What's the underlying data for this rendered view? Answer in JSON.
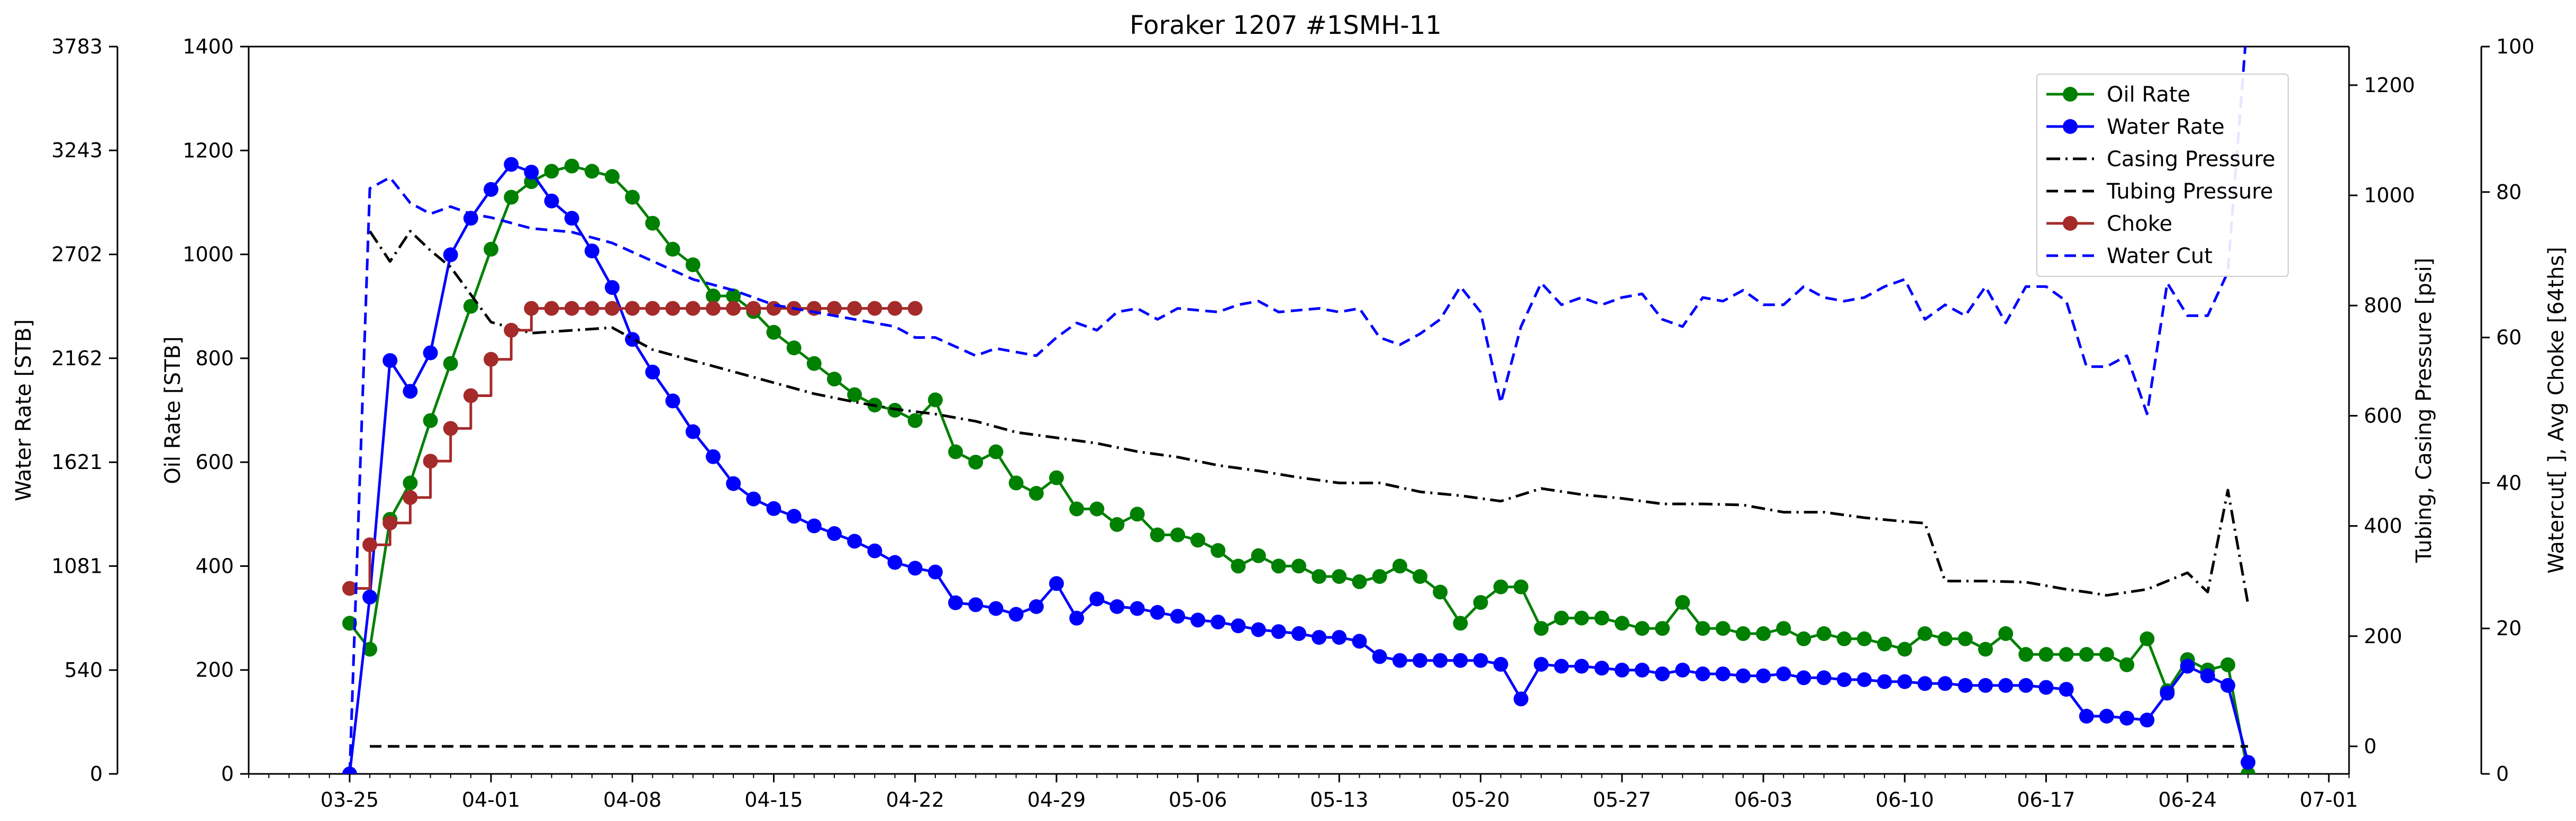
{
  "chart_data": {
    "type": "line",
    "title": "Foraker 1207 #1SMH-11",
    "x_axis": {
      "range": [
        "2019-03-20",
        "2019-07-02"
      ],
      "ticks": [
        "03-25",
        "04-01",
        "04-08",
        "04-15",
        "04-22",
        "04-29",
        "05-06",
        "05-13",
        "05-20",
        "05-27",
        "06-03",
        "06-10",
        "06-17",
        "06-24",
        "07-01"
      ],
      "tick_dates": [
        "2019-03-25",
        "2019-04-01",
        "2019-04-08",
        "2019-04-15",
        "2019-04-22",
        "2019-04-29",
        "2019-05-06",
        "2019-05-13",
        "2019-05-20",
        "2019-05-27",
        "2019-06-03",
        "2019-06-10",
        "2019-06-17",
        "2019-06-24",
        "2019-07-01"
      ]
    },
    "axes": {
      "oil": {
        "label": "Oil Rate [STB]",
        "range": [
          0,
          1400
        ],
        "ticks": [
          "0",
          "200",
          "400",
          "600",
          "800",
          "1000",
          "1200",
          "1400"
        ]
      },
      "water": {
        "label": "Water Rate [STB]",
        "range": [
          0,
          3783
        ],
        "ticks": [
          "0",
          "540",
          "1081",
          "1621",
          "2162",
          "2702",
          "3243",
          "3783"
        ]
      },
      "pressure": {
        "label": "Tubing, Casing Pressure [psi]",
        "range": [
          -50,
          1270
        ],
        "ticks": [
          "0",
          "200",
          "400",
          "600",
          "800",
          "1000",
          "1200"
        ]
      },
      "watercut": {
        "label": "Watercut[ ], Avg Choke [64ths]",
        "range": [
          0,
          100
        ],
        "ticks": [
          "0",
          "20",
          "40",
          "60",
          "80",
          "100"
        ]
      }
    },
    "legend": {
      "placement": "top-right",
      "entries": [
        "Oil Rate",
        "Water Rate",
        "Casing Pressure",
        "Tubing Pressure",
        "Choke",
        "Water Cut"
      ]
    },
    "grid": false,
    "series": [
      {
        "name": "Oil Rate",
        "axis": "oil",
        "color": "#008000",
        "style": "solid",
        "marker": "circle",
        "x": [
          "2019-03-25",
          "2019-03-26",
          "2019-03-27",
          "2019-03-28",
          "2019-03-29",
          "2019-03-30",
          "2019-03-31",
          "2019-04-01",
          "2019-04-02",
          "2019-04-03",
          "2019-04-04",
          "2019-04-05",
          "2019-04-06",
          "2019-04-07",
          "2019-04-08",
          "2019-04-09",
          "2019-04-10",
          "2019-04-11",
          "2019-04-12",
          "2019-04-13",
          "2019-04-14",
          "2019-04-15",
          "2019-04-16",
          "2019-04-17",
          "2019-04-18",
          "2019-04-19",
          "2019-04-20",
          "2019-04-21",
          "2019-04-22",
          "2019-04-23",
          "2019-04-24",
          "2019-04-25",
          "2019-04-26",
          "2019-04-27",
          "2019-04-28",
          "2019-04-29",
          "2019-04-30",
          "2019-05-01",
          "2019-05-02",
          "2019-05-03",
          "2019-05-04",
          "2019-05-05",
          "2019-05-06",
          "2019-05-07",
          "2019-05-08",
          "2019-05-09",
          "2019-05-10",
          "2019-05-11",
          "2019-05-12",
          "2019-05-13",
          "2019-05-14",
          "2019-05-15",
          "2019-05-16",
          "2019-05-17",
          "2019-05-18",
          "2019-05-19",
          "2019-05-20",
          "2019-05-21",
          "2019-05-22",
          "2019-05-23",
          "2019-05-24",
          "2019-05-25",
          "2019-05-26",
          "2019-05-27",
          "2019-05-28",
          "2019-05-29",
          "2019-05-30",
          "2019-05-31",
          "2019-06-01",
          "2019-06-02",
          "2019-06-03",
          "2019-06-04",
          "2019-06-05",
          "2019-06-06",
          "2019-06-07",
          "2019-06-08",
          "2019-06-09",
          "2019-06-10",
          "2019-06-11",
          "2019-06-12",
          "2019-06-13",
          "2019-06-14",
          "2019-06-15",
          "2019-06-16",
          "2019-06-17",
          "2019-06-18",
          "2019-06-19",
          "2019-06-20",
          "2019-06-21",
          "2019-06-22",
          "2019-06-23",
          "2019-06-24",
          "2019-06-25",
          "2019-06-26",
          "2019-06-27"
        ],
        "values": [
          290,
          240,
          490,
          560,
          680,
          790,
          900,
          1010,
          1110,
          1140,
          1160,
          1170,
          1160,
          1150,
          1110,
          1060,
          1010,
          980,
          920,
          920,
          890,
          850,
          820,
          790,
          760,
          730,
          710,
          700,
          680,
          720,
          620,
          600,
          620,
          560,
          540,
          570,
          510,
          510,
          480,
          500,
          460,
          460,
          450,
          430,
          400,
          420,
          400,
          400,
          380,
          380,
          370,
          380,
          400,
          380,
          350,
          290,
          330,
          360,
          360,
          280,
          300,
          300,
          300,
          290,
          280,
          280,
          330,
          280,
          280,
          270,
          270,
          280,
          260,
          270,
          260,
          260,
          250,
          240,
          270,
          260,
          260,
          240,
          270,
          230,
          230,
          230,
          230,
          230,
          210,
          260,
          160,
          220,
          200,
          210,
          0
        ]
      },
      {
        "name": "Water Rate",
        "axis": "water",
        "color": "#0000ff",
        "style": "solid",
        "marker": "circle",
        "x": [
          "2019-03-25",
          "2019-03-26",
          "2019-03-27",
          "2019-03-28",
          "2019-03-29",
          "2019-03-30",
          "2019-03-31",
          "2019-04-01",
          "2019-04-02",
          "2019-04-03",
          "2019-04-04",
          "2019-04-05",
          "2019-04-06",
          "2019-04-07",
          "2019-04-08",
          "2019-04-09",
          "2019-04-10",
          "2019-04-11",
          "2019-04-12",
          "2019-04-13",
          "2019-04-14",
          "2019-04-15",
          "2019-04-16",
          "2019-04-17",
          "2019-04-18",
          "2019-04-19",
          "2019-04-20",
          "2019-04-21",
          "2019-04-22",
          "2019-04-23",
          "2019-04-24",
          "2019-04-25",
          "2019-04-26",
          "2019-04-27",
          "2019-04-28",
          "2019-04-29",
          "2019-04-30",
          "2019-05-01",
          "2019-05-02",
          "2019-05-03",
          "2019-05-04",
          "2019-05-05",
          "2019-05-06",
          "2019-05-07",
          "2019-05-08",
          "2019-05-09",
          "2019-05-10",
          "2019-05-11",
          "2019-05-12",
          "2019-05-13",
          "2019-05-14",
          "2019-05-15",
          "2019-05-16",
          "2019-05-17",
          "2019-05-18",
          "2019-05-19",
          "2019-05-20",
          "2019-05-21",
          "2019-05-22",
          "2019-05-23",
          "2019-05-24",
          "2019-05-25",
          "2019-05-26",
          "2019-05-27",
          "2019-05-28",
          "2019-05-29",
          "2019-05-30",
          "2019-05-31",
          "2019-06-01",
          "2019-06-02",
          "2019-06-03",
          "2019-06-04",
          "2019-06-05",
          "2019-06-06",
          "2019-06-07",
          "2019-06-08",
          "2019-06-09",
          "2019-06-10",
          "2019-06-11",
          "2019-06-12",
          "2019-06-13",
          "2019-06-14",
          "2019-06-15",
          "2019-06-16",
          "2019-06-17",
          "2019-06-18",
          "2019-06-19",
          "2019-06-20",
          "2019-06-21",
          "2019-06-22",
          "2019-06-23",
          "2019-06-24",
          "2019-06-25",
          "2019-06-26",
          "2019-06-27"
        ],
        "values": [
          0,
          920,
          2150,
          1990,
          2190,
          2700,
          2890,
          3040,
          3170,
          3130,
          2980,
          2890,
          2720,
          2530,
          2260,
          2090,
          1940,
          1780,
          1650,
          1510,
          1430,
          1380,
          1340,
          1290,
          1250,
          1210,
          1160,
          1100,
          1070,
          1050,
          890,
          880,
          860,
          830,
          870,
          990,
          810,
          910,
          870,
          860,
          840,
          820,
          800,
          790,
          770,
          750,
          740,
          730,
          710,
          710,
          690,
          610,
          590,
          590,
          590,
          590,
          590,
          570,
          390,
          570,
          560,
          560,
          550,
          540,
          540,
          520,
          540,
          520,
          520,
          510,
          510,
          520,
          500,
          500,
          490,
          490,
          480,
          480,
          470,
          470,
          460,
          460,
          460,
          460,
          450,
          440,
          300,
          300,
          290,
          280,
          420,
          560,
          510,
          460,
          60
        ]
      },
      {
        "name": "Casing Pressure",
        "axis": "pressure",
        "color": "#000000",
        "style": "dash-dot",
        "marker": "none",
        "x": [
          "2019-03-26",
          "2019-03-27",
          "2019-03-28",
          "2019-03-29",
          "2019-03-30",
          "2019-04-01",
          "2019-04-03",
          "2019-04-05",
          "2019-04-07",
          "2019-04-09",
          "2019-04-11",
          "2019-04-13",
          "2019-04-15",
          "2019-04-17",
          "2019-04-19",
          "2019-04-21",
          "2019-04-23",
          "2019-04-25",
          "2019-04-27",
          "2019-04-29",
          "2019-05-01",
          "2019-05-03",
          "2019-05-05",
          "2019-05-07",
          "2019-05-09",
          "2019-05-11",
          "2019-05-13",
          "2019-05-15",
          "2019-05-17",
          "2019-05-19",
          "2019-05-21",
          "2019-05-23",
          "2019-05-25",
          "2019-05-27",
          "2019-05-29",
          "2019-05-31",
          "2019-06-02",
          "2019-06-04",
          "2019-06-06",
          "2019-06-08",
          "2019-06-10",
          "2019-06-11",
          "2019-06-12",
          "2019-06-14",
          "2019-06-16",
          "2019-06-18",
          "2019-06-19",
          "2019-06-20",
          "2019-06-22",
          "2019-06-24",
          "2019-06-25",
          "2019-06-26",
          "2019-06-27"
        ],
        "values": [
          935,
          880,
          935,
          900,
          870,
          770,
          750,
          755,
          760,
          720,
          700,
          680,
          660,
          640,
          625,
          612,
          603,
          590,
          570,
          560,
          550,
          535,
          525,
          510,
          500,
          488,
          478,
          478,
          462,
          455,
          445,
          468,
          457,
          450,
          440,
          440,
          438,
          425,
          425,
          415,
          408,
          405,
          300,
          300,
          298,
          285,
          280,
          274,
          285,
          315,
          280,
          465,
          258
        ]
      },
      {
        "name": "Tubing Pressure",
        "axis": "pressure",
        "color": "#000000",
        "style": "dashed",
        "marker": "none",
        "x": [
          "2019-03-26",
          "2019-06-27"
        ],
        "values": [
          0,
          0
        ]
      },
      {
        "name": "Choke",
        "axis": "watercut",
        "color": "#a52a2a",
        "style": "steps-post",
        "marker": "circle",
        "x": [
          "2019-03-25",
          "2019-03-26",
          "2019-03-27",
          "2019-03-28",
          "2019-03-29",
          "2019-03-30",
          "2019-03-31",
          "2019-04-01",
          "2019-04-02",
          "2019-04-03",
          "2019-04-04",
          "2019-04-05",
          "2019-04-06",
          "2019-04-07",
          "2019-04-08",
          "2019-04-09",
          "2019-04-10",
          "2019-04-11",
          "2019-04-12",
          "2019-04-13",
          "2019-04-14",
          "2019-04-15",
          "2019-04-16",
          "2019-04-17",
          "2019-04-18",
          "2019-04-19",
          "2019-04-20",
          "2019-04-21",
          "2019-04-22"
        ],
        "values": [
          25.5,
          31.5,
          34.5,
          38,
          43,
          47.5,
          52,
          57,
          61,
          64,
          64,
          64,
          64,
          64,
          64,
          64,
          64,
          64,
          64,
          64,
          64,
          64,
          64,
          64,
          64,
          64,
          64,
          64,
          64
        ]
      },
      {
        "name": "Water Cut",
        "axis": "watercut",
        "color": "#0000ff",
        "style": "dashed",
        "marker": "none",
        "x": [
          "2019-03-25",
          "2019-03-26",
          "2019-03-27",
          "2019-03-28",
          "2019-03-29",
          "2019-03-30",
          "2019-03-31",
          "2019-04-01",
          "2019-04-03",
          "2019-04-05",
          "2019-04-07",
          "2019-04-09",
          "2019-04-11",
          "2019-04-13",
          "2019-04-15",
          "2019-04-17",
          "2019-04-19",
          "2019-04-21",
          "2019-04-22",
          "2019-04-23",
          "2019-04-25",
          "2019-04-26",
          "2019-04-28",
          "2019-04-29",
          "2019-04-30",
          "2019-05-01",
          "2019-05-02",
          "2019-05-03",
          "2019-05-04",
          "2019-05-05",
          "2019-05-07",
          "2019-05-08",
          "2019-05-09",
          "2019-05-10",
          "2019-05-12",
          "2019-05-13",
          "2019-05-14",
          "2019-05-15",
          "2019-05-16",
          "2019-05-17",
          "2019-05-18",
          "2019-05-19",
          "2019-05-20",
          "2019-05-21",
          "2019-05-22",
          "2019-05-23",
          "2019-05-24",
          "2019-05-25",
          "2019-05-26",
          "2019-05-27",
          "2019-05-28",
          "2019-05-29",
          "2019-05-30",
          "2019-05-31",
          "2019-06-01",
          "2019-06-02",
          "2019-06-03",
          "2019-06-04",
          "2019-06-05",
          "2019-06-06",
          "2019-06-07",
          "2019-06-08",
          "2019-06-09",
          "2019-06-10",
          "2019-06-11",
          "2019-06-12",
          "2019-06-13",
          "2019-06-14",
          "2019-06-15",
          "2019-06-16",
          "2019-06-17",
          "2019-06-18",
          "2019-06-19",
          "2019-06-20",
          "2019-06-21",
          "2019-06-22",
          "2019-06-23",
          "2019-06-24",
          "2019-06-25",
          "2019-06-26",
          "2019-06-27"
        ],
        "values": [
          0,
          80.5,
          82,
          78.5,
          77,
          78,
          77,
          76.5,
          75,
          74.5,
          73,
          70.5,
          68,
          66.5,
          64.5,
          63.5,
          62.5,
          61.5,
          60,
          60,
          57.5,
          58.5,
          57.5,
          60,
          62,
          61,
          63.5,
          64,
          62.5,
          64,
          63.5,
          64.5,
          65,
          63.5,
          64,
          63.5,
          64,
          60,
          59,
          60.5,
          62.5,
          67,
          63.5,
          51,
          61.5,
          67.5,
          64.5,
          65.5,
          64.5,
          65.5,
          66,
          62.5,
          61.5,
          65.5,
          65,
          66.5,
          64.5,
          64.5,
          67,
          65.5,
          65,
          65.5,
          67,
          68,
          62.5,
          64.5,
          63,
          67,
          62,
          67,
          67,
          65,
          56,
          56,
          57.5,
          49.5,
          67.5,
          63,
          63,
          69,
          105
        ]
      }
    ]
  }
}
